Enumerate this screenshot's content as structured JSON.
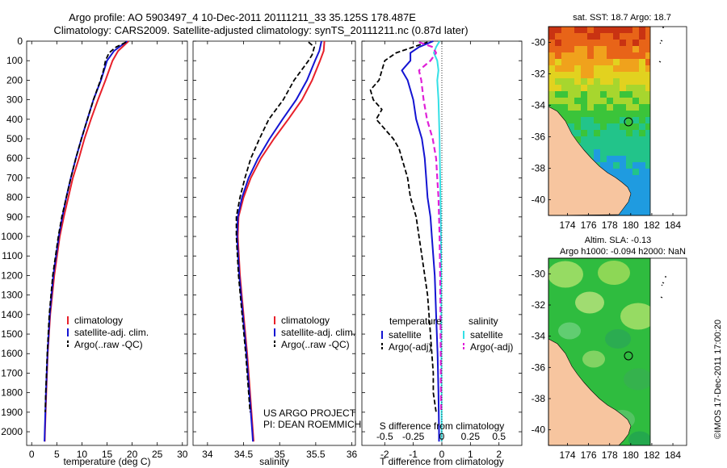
{
  "titles": {
    "line1": "Argo profile: AO 5903497_4 10-Dec-2011 20111211_33 35.125S 178.487E",
    "line2": "Climatology: CARS2009. Satellite-adjusted climatology: synTS_20111211.nc (0.87d later)"
  },
  "side_label": "©IMOS 17-Dec-2011 17:00:20",
  "project_text": {
    "line1": "US ARGO PROJECT",
    "line2": "PI: DEAN ROEMMICH"
  },
  "colors": {
    "climatology": "#e8202a",
    "satellite": "#1414d2",
    "argo": "#000000",
    "sal_sat": "#34e0e6",
    "sal_argo": "#e020d8",
    "land": "#f7c59f",
    "ocean_blank": "#ffffff"
  },
  "chart_data": [
    {
      "type": "line",
      "xlabel": "temperature (deg C)",
      "xticks": [
        0,
        5,
        10,
        15,
        20,
        25,
        30
      ],
      "xlim": [
        -1,
        31
      ],
      "ylim": [
        2070,
        0
      ],
      "yticks": [
        0,
        100,
        200,
        300,
        400,
        500,
        600,
        700,
        800,
        900,
        1000,
        1100,
        1200,
        1300,
        1400,
        1500,
        1600,
        1700,
        1800,
        1900,
        2000
      ],
      "legend": [
        "climatology",
        "satellite-adj. clim.",
        "Argo(..raw -QC)"
      ],
      "series": [
        {
          "name": "climatology",
          "depth": [
            0,
            50,
            100,
            200,
            300,
            400,
            500,
            600,
            700,
            800,
            900,
            1000,
            1200,
            1400,
            1600,
            1800,
            2000,
            2050
          ],
          "values": [
            19.3,
            17.2,
            16.1,
            14.7,
            13.2,
            11.8,
            10.5,
            9.4,
            8.2,
            7.3,
            6.4,
            5.6,
            4.5,
            3.7,
            3.2,
            2.9,
            2.65,
            2.6
          ]
        },
        {
          "name": "satellite-adj. clim.",
          "depth": [
            0,
            50,
            100,
            200,
            300,
            400,
            500,
            600,
            700,
            800,
            900,
            1000,
            1200,
            1400,
            1600,
            1800,
            2000,
            2050
          ],
          "values": [
            19.0,
            16.4,
            15.0,
            13.8,
            12.3,
            11.1,
            9.9,
            8.8,
            7.8,
            6.9,
            6.1,
            5.4,
            4.3,
            3.6,
            3.15,
            2.85,
            2.6,
            2.55
          ]
        },
        {
          "name": "Argo(..raw -QC)",
          "depth": [
            5,
            30,
            60,
            100,
            150,
            200,
            300,
            400,
            500,
            600,
            700,
            800,
            900,
            1000,
            1200,
            1400,
            1600,
            1800,
            1900
          ],
          "values": [
            18.8,
            16.8,
            15.4,
            14.7,
            14.3,
            13.7,
            12.3,
            11.1,
            9.9,
            8.8,
            7.8,
            6.9,
            6.0,
            5.3,
            4.2,
            3.5,
            3.1,
            2.8,
            2.7
          ]
        }
      ]
    },
    {
      "type": "line",
      "xlabel": "salinity",
      "xticks": [
        34,
        34.5,
        35,
        35.5,
        36
      ],
      "xlim": [
        33.8,
        36.05
      ],
      "ylim": [
        2070,
        0
      ],
      "legend": [
        "climatology",
        "satellite-adj. clim.",
        "Argo(..raw -QC)"
      ],
      "series": [
        {
          "name": "climatology",
          "depth": [
            0,
            50,
            100,
            200,
            300,
            400,
            500,
            600,
            700,
            800,
            900,
            1000,
            1200,
            1400,
            1600,
            1800,
            2000,
            2050
          ],
          "values": [
            35.62,
            35.61,
            35.56,
            35.45,
            35.31,
            35.12,
            34.92,
            34.74,
            34.6,
            34.5,
            34.43,
            34.42,
            34.45,
            34.5,
            34.55,
            34.59,
            34.63,
            34.64
          ]
        },
        {
          "name": "satellite-adj. clim.",
          "depth": [
            0,
            50,
            100,
            200,
            300,
            400,
            500,
            600,
            700,
            800,
            900,
            1000,
            1200,
            1400,
            1600,
            1800,
            2000,
            2050
          ],
          "values": [
            35.58,
            35.55,
            35.49,
            35.38,
            35.23,
            35.04,
            34.86,
            34.7,
            34.57,
            34.48,
            34.42,
            34.41,
            34.44,
            34.49,
            34.54,
            34.58,
            34.62,
            34.63
          ]
        },
        {
          "name": "Argo(..raw -QC)",
          "depth": [
            5,
            30,
            70,
            100,
            150,
            200,
            300,
            400,
            500,
            600,
            700,
            800,
            900,
            1000,
            1200,
            1400,
            1600,
            1800,
            1900
          ],
          "values": [
            35.4,
            35.48,
            35.45,
            35.4,
            35.3,
            35.2,
            35.05,
            34.85,
            34.72,
            34.6,
            34.52,
            34.45,
            34.4,
            34.4,
            34.43,
            34.48,
            34.53,
            34.57,
            34.59
          ]
        }
      ]
    },
    {
      "type": "line",
      "xlabel": "T difference from climatology",
      "xlabel_top": "S difference from climatology",
      "xticks": [
        -2,
        -1,
        0,
        1,
        2
      ],
      "xticks_top": [
        "-0.5",
        "-0.25",
        "0",
        "0.25",
        "0.5"
      ],
      "xlim": [
        -2.8,
        2.8
      ],
      "ylim": [
        2070,
        0
      ],
      "legend_temperature": {
        "header": "temperature",
        "items": [
          "satellite",
          "Argo(-adj)"
        ]
      },
      "legend_salinity": {
        "header": "salinity",
        "items": [
          "satellite",
          "Argo(-adj)"
        ]
      },
      "series": [
        {
          "name": "temperature satellite",
          "depth": [
            0,
            30,
            60,
            100,
            150,
            200,
            300,
            400,
            500,
            600,
            700,
            800,
            900,
            1000,
            1200,
            1400,
            1600,
            1800,
            2000,
            2050
          ],
          "values": [
            -0.3,
            -0.8,
            -1.1,
            -1.1,
            -1.4,
            -1.2,
            -1.0,
            -0.9,
            -0.7,
            -0.6,
            -0.55,
            -0.5,
            -0.4,
            -0.35,
            -0.25,
            -0.2,
            -0.15,
            -0.12,
            -0.1,
            -0.1
          ]
        },
        {
          "name": "temperature Argo(-adj)",
          "depth": [
            5,
            30,
            60,
            100,
            150,
            200,
            250,
            300,
            350,
            400,
            450,
            500,
            550,
            600,
            700,
            800,
            900,
            1000,
            1100,
            1200,
            1300,
            1400,
            1500,
            1600,
            1700,
            1800,
            1900
          ],
          "values": [
            -0.5,
            -1.0,
            -1.6,
            -2.0,
            -2.1,
            -2.2,
            -2.5,
            -2.4,
            -2.1,
            -2.3,
            -2.0,
            -1.7,
            -1.5,
            -1.4,
            -1.2,
            -1.1,
            -0.9,
            -0.8,
            -0.7,
            -0.6,
            -0.5,
            -0.45,
            -0.4,
            -0.35,
            -0.3,
            -0.3,
            -0.2
          ]
        },
        {
          "name": "salinity satellite",
          "depth": [
            0,
            30,
            60,
            100,
            150,
            200,
            300,
            400,
            500,
            600,
            700,
            800,
            900,
            1000,
            1200,
            1400,
            1600,
            1800,
            2000,
            2050
          ],
          "values": [
            -0.02,
            -0.05,
            -0.07,
            -0.04,
            -0.03,
            -0.04,
            -0.03,
            -0.025,
            -0.02,
            -0.018,
            -0.015,
            -0.012,
            -0.01,
            -0.008,
            -0.006,
            -0.005,
            -0.004,
            -0.003,
            -0.002,
            -0.002
          ]
        },
        {
          "name": "salinity Argo(-adj)",
          "depth": [
            5,
            30,
            60,
            100,
            150,
            200,
            300,
            400,
            500,
            600,
            700,
            800,
            900,
            1000,
            1200,
            1400,
            1600,
            1800,
            1900
          ],
          "values": [
            -0.2,
            -0.08,
            -0.05,
            -0.1,
            -0.2,
            -0.18,
            -0.16,
            -0.13,
            -0.08,
            -0.05,
            -0.04,
            -0.03,
            -0.025,
            -0.02,
            -0.015,
            -0.012,
            -0.01,
            -0.008,
            -0.006
          ]
        }
      ]
    },
    {
      "type": "heatmap",
      "title": "sat. SST: 18.7 Argo: 18.7",
      "xticks": [
        174,
        176,
        178,
        180,
        182,
        184
      ],
      "yticks": [
        -30,
        -32,
        -34,
        -36,
        -38,
        -40
      ],
      "xlim": [
        172.2,
        185.3
      ],
      "ylim": [
        -41,
        -29
      ],
      "marker": {
        "lon": 178.487,
        "lat": -35.125
      }
    },
    {
      "type": "heatmap",
      "title": "Altim. SLA: -0.13",
      "subtitle": "Argo h1000: -0.094 h2000: NaN",
      "xticks": [
        174,
        176,
        178,
        180,
        182,
        184
      ],
      "yticks": [
        -30,
        -32,
        -34,
        -36,
        -38,
        -40
      ],
      "xlim": [
        172.2,
        185.3
      ],
      "ylim": [
        -41,
        -29
      ],
      "marker": {
        "lon": 178.487,
        "lat": -35.125
      }
    }
  ]
}
